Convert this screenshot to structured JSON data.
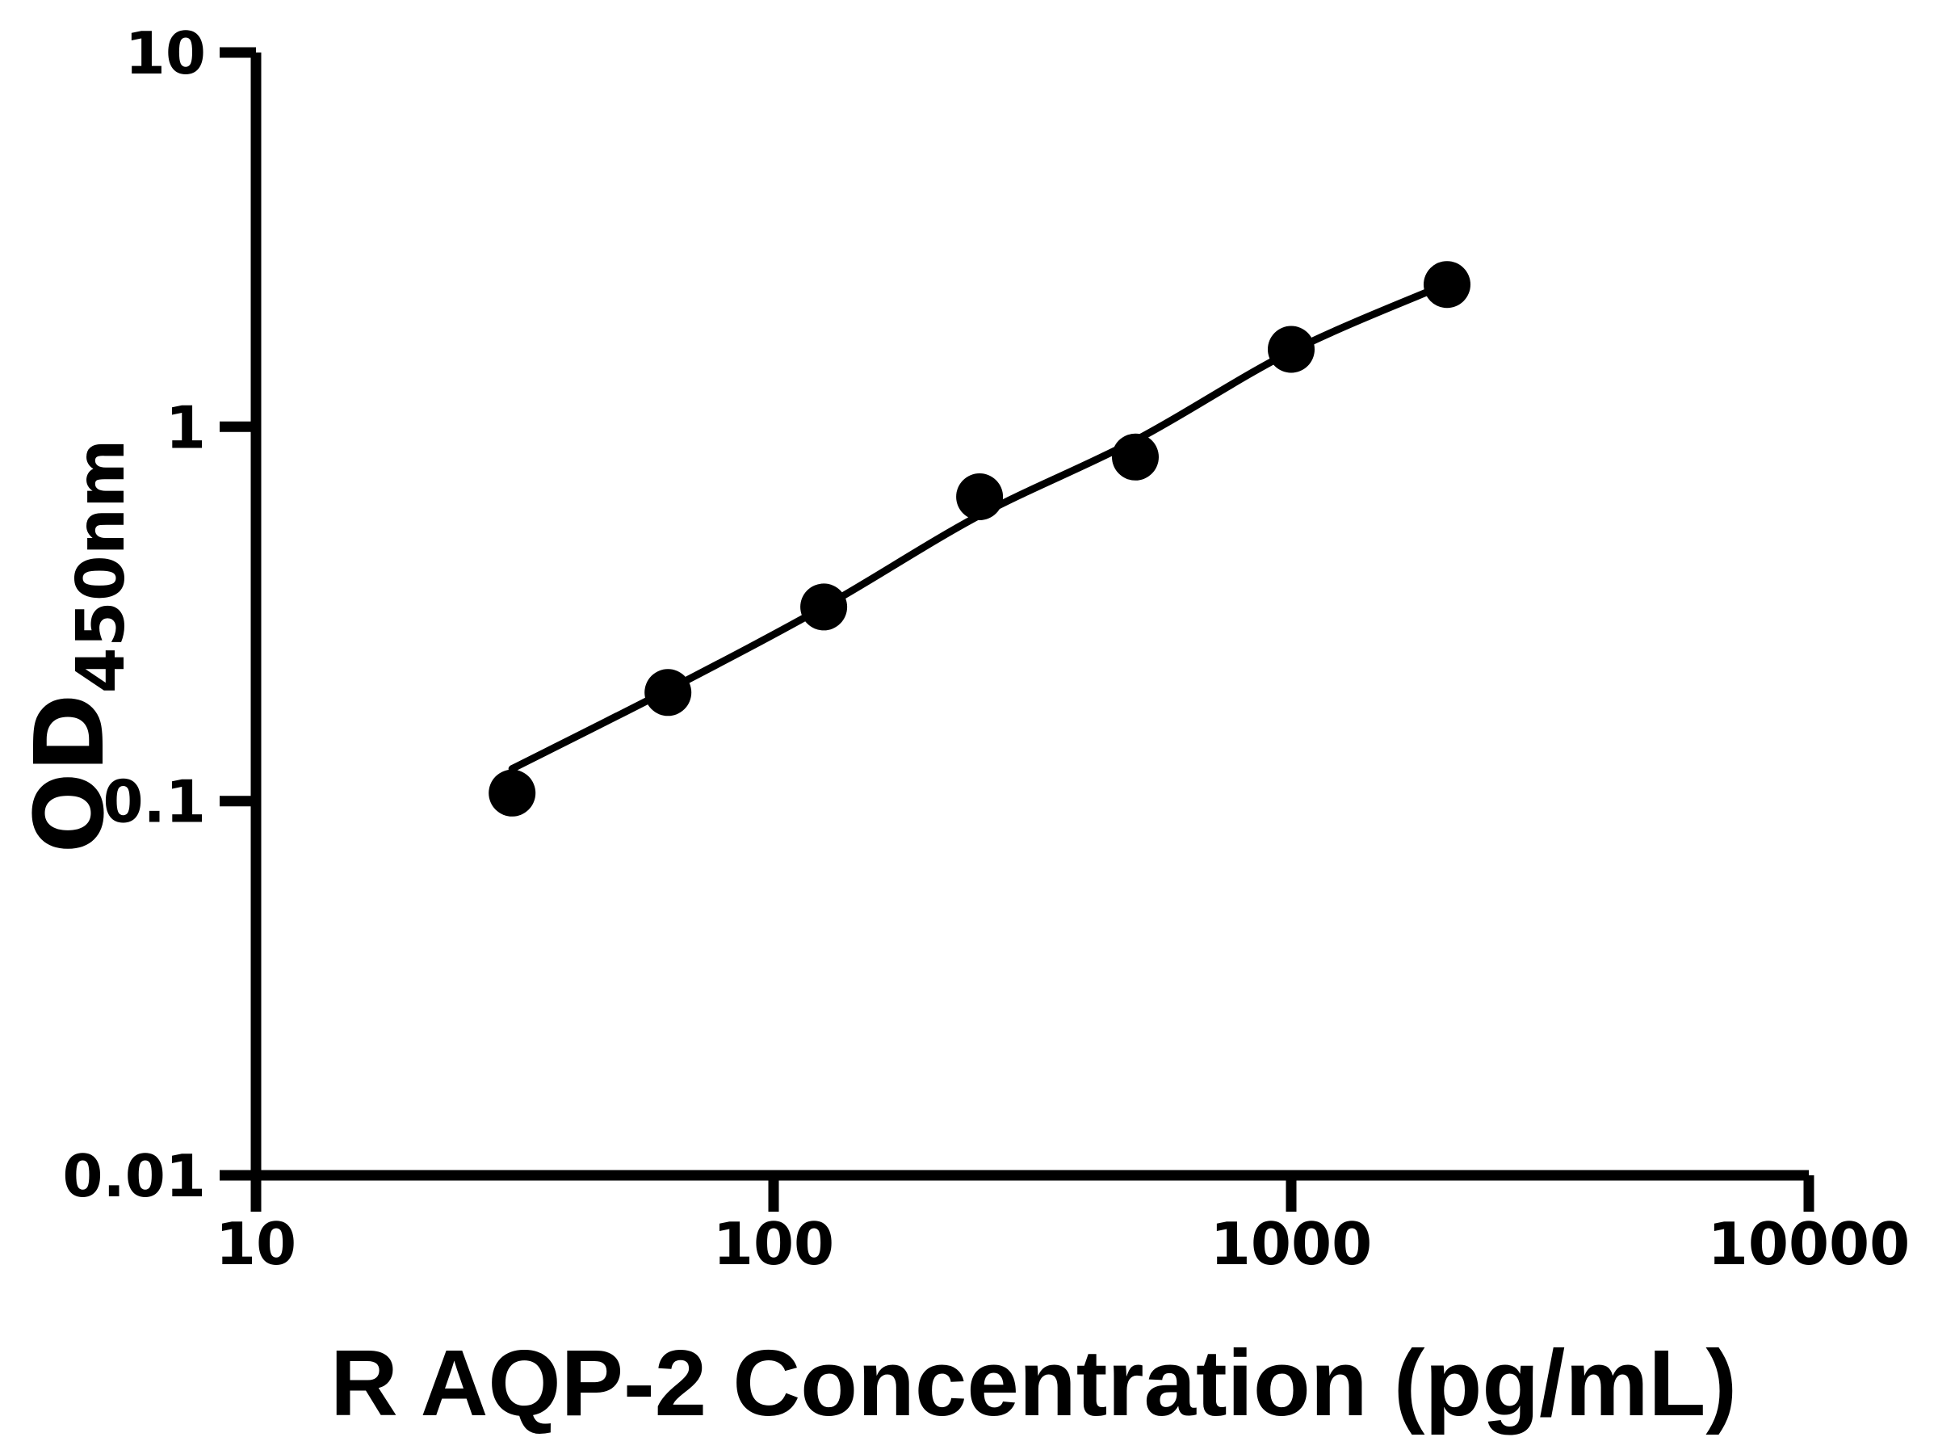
{
  "chart_data": {
    "type": "scatter",
    "title": "",
    "xlabel": "R AQP-2 Concentration (pg/mL)",
    "ylabel": "OD450nm",
    "ylabel_main": "OD",
    "ylabel_sub": "450nm",
    "x_scale": "log",
    "y_scale": "log",
    "xlim": [
      10,
      10000
    ],
    "ylim": [
      0.01,
      10
    ],
    "x_tick_labels": [
      "10",
      "100",
      "1000",
      "10000"
    ],
    "x_tick_values": [
      10,
      100,
      1000,
      10000
    ],
    "y_tick_labels": [
      "0.01",
      "0.1",
      "1",
      "10"
    ],
    "y_tick_values": [
      0.01,
      0.1,
      1,
      10
    ],
    "grid": false,
    "legend": false,
    "series": [
      {
        "name": "standard-points",
        "type": "scatter",
        "marker": "filled-circle",
        "color": "#000000",
        "x": [
          31.25,
          62.5,
          125,
          250,
          500,
          1000,
          2000
        ],
        "y": [
          0.105,
          0.195,
          0.33,
          0.65,
          0.83,
          1.61,
          2.4
        ]
      },
      {
        "name": "fit-curve",
        "type": "line",
        "color": "#000000",
        "x": [
          31.25,
          62.5,
          125,
          250,
          500,
          1000,
          2000
        ],
        "y": [
          0.122,
          0.198,
          0.33,
          0.58,
          0.92,
          1.59,
          2.41
        ]
      }
    ]
  },
  "styles": {
    "background": "#ffffff",
    "axis_color": "#000000"
  }
}
